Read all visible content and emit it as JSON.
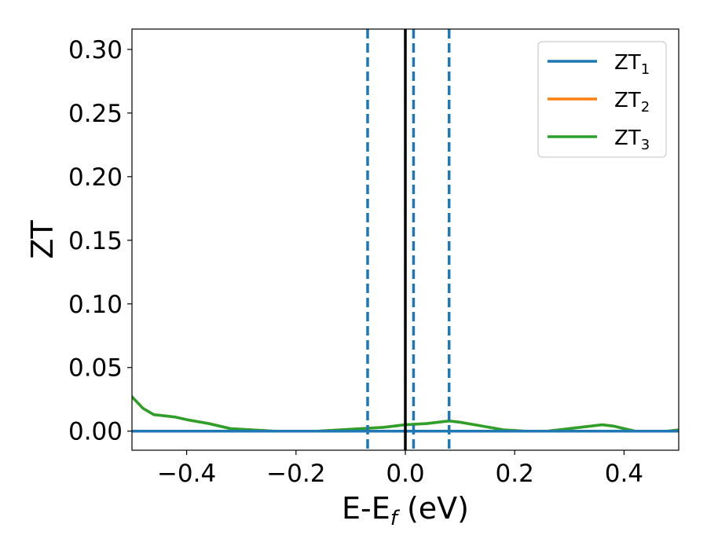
{
  "chart_data": {
    "type": "line",
    "xlabel": "E-E",
    "xlabel_sub": "f",
    "xlabel_unit": " (eV)",
    "ylabel": "ZT",
    "xlim": [
      -0.5,
      0.5
    ],
    "ylim": [
      -0.015,
      0.316
    ],
    "x_ticks": [
      -0.4,
      -0.2,
      0.0,
      0.2,
      0.4
    ],
    "x_tick_labels": [
      "−0.4",
      "−0.2",
      "0.0",
      "0.2",
      "0.4"
    ],
    "y_ticks": [
      0.0,
      0.05,
      0.1,
      0.15,
      0.2,
      0.25,
      0.3
    ],
    "y_tick_labels": [
      "0.00",
      "0.05",
      "0.10",
      "0.15",
      "0.20",
      "0.25",
      "0.30"
    ],
    "grid": false,
    "legend_position": "top-right",
    "series": [
      {
        "name": "ZT",
        "sub": "1",
        "color": "#1f77b4",
        "x": [
          -0.5,
          0.5
        ],
        "y": [
          0.0,
          0.0
        ]
      },
      {
        "name": "ZT",
        "sub": "2",
        "color": "#ff7f0e",
        "x": [
          -0.5,
          -0.48,
          -0.46,
          -0.44,
          -0.42,
          -0.4,
          -0.36,
          -0.32,
          -0.28,
          -0.24,
          -0.2,
          -0.16,
          -0.12,
          -0.08,
          -0.04,
          0.0,
          0.04,
          0.08,
          0.1,
          0.14,
          0.18,
          0.22,
          0.26,
          0.3,
          0.34,
          0.36,
          0.38,
          0.4,
          0.42,
          0.44,
          0.48,
          0.5
        ],
        "y": [
          0.027,
          0.018,
          0.013,
          0.012,
          0.011,
          0.009,
          0.006,
          0.002,
          0.001,
          0.0,
          0.0,
          0.0,
          0.001,
          0.002,
          0.003,
          0.005,
          0.006,
          0.008,
          0.007,
          0.004,
          0.001,
          0.0,
          0.0,
          0.002,
          0.004,
          0.005,
          0.004,
          0.002,
          0.0,
          0.0,
          0.0,
          0.001
        ]
      },
      {
        "name": "ZT",
        "sub": "3",
        "color": "#2ca02c",
        "x": [
          -0.5,
          -0.48,
          -0.46,
          -0.44,
          -0.42,
          -0.4,
          -0.36,
          -0.32,
          -0.28,
          -0.24,
          -0.2,
          -0.16,
          -0.12,
          -0.08,
          -0.04,
          0.0,
          0.04,
          0.08,
          0.1,
          0.14,
          0.18,
          0.22,
          0.26,
          0.3,
          0.34,
          0.36,
          0.38,
          0.4,
          0.42,
          0.44,
          0.48,
          0.5
        ],
        "y": [
          0.027,
          0.018,
          0.013,
          0.012,
          0.011,
          0.009,
          0.006,
          0.002,
          0.001,
          0.0,
          0.0,
          0.0,
          0.001,
          0.002,
          0.003,
          0.005,
          0.006,
          0.008,
          0.007,
          0.004,
          0.001,
          0.0,
          0.0,
          0.002,
          0.004,
          0.005,
          0.004,
          0.002,
          0.0,
          0.0,
          0.0,
          0.001
        ]
      }
    ],
    "vlines": [
      {
        "x": -0.069,
        "color": "#1f77b4",
        "style": "dashed"
      },
      {
        "x": 0.0,
        "color": "#000000",
        "style": "solid"
      },
      {
        "x": 0.015,
        "color": "#1f77b4",
        "style": "dashed"
      },
      {
        "x": 0.08,
        "color": "#1f77b4",
        "style": "dashed"
      }
    ]
  }
}
